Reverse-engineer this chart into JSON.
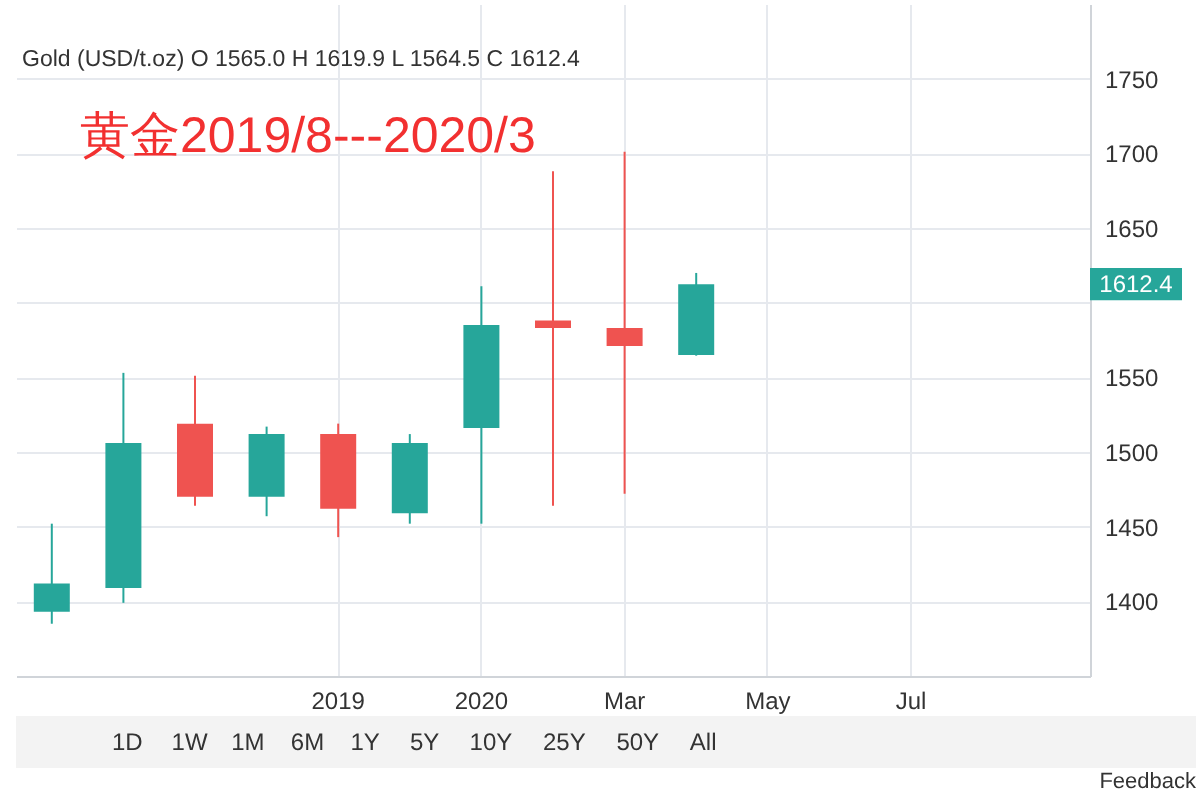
{
  "chart_data": {
    "type": "candlestick",
    "title": "黄金2019/8---2020/3",
    "subtitle": "Gold (USD/t.oz) O 1565.0 H 1619.9 L 1564.5 C 1612.4",
    "categories": [
      null,
      null,
      null,
      null,
      "2019",
      null,
      "2020",
      null,
      "Mar",
      null,
      "May",
      null,
      "Jul",
      null,
      null
    ],
    "ohlc": [
      [
        1393,
        1452,
        1385,
        1412
      ],
      [
        1409,
        1553,
        1399,
        1506
      ],
      [
        1519,
        1551,
        1464,
        1470
      ],
      [
        1470,
        1517,
        1457,
        1512
      ],
      [
        1512,
        1519,
        1443,
        1462
      ],
      [
        1459,
        1512,
        1452,
        1506
      ],
      [
        1516,
        1611,
        1452,
        1585
      ],
      [
        1588,
        1688,
        1464,
        1583
      ],
      [
        1583,
        1701,
        1472,
        1571
      ],
      [
        1565.0,
        1619.9,
        1564.5,
        1612.4
      ],
      null,
      null,
      null,
      null,
      null
    ],
    "colors": [
      "#26a69a",
      "#26a69a",
      "#ef5350",
      "#26a69a",
      "#ef5350",
      "#26a69a",
      "#26a69a",
      "#ef5350",
      "#ef5350",
      "#26a69a",
      null,
      null,
      null,
      null,
      null
    ],
    "ylim": [
      1350,
      1800
    ],
    "yticks": [
      1400,
      1450,
      1500,
      1550,
      {
        "value": 1600,
        "label": null
      },
      1650,
      1700,
      1750
    ],
    "grid": true,
    "annotations": [
      "1612.4",
      "1D",
      "1W",
      "1M",
      "6M",
      "1Y",
      "5Y",
      "10Y",
      "25Y",
      "50Y",
      "All",
      "Feedback"
    ]
  }
}
